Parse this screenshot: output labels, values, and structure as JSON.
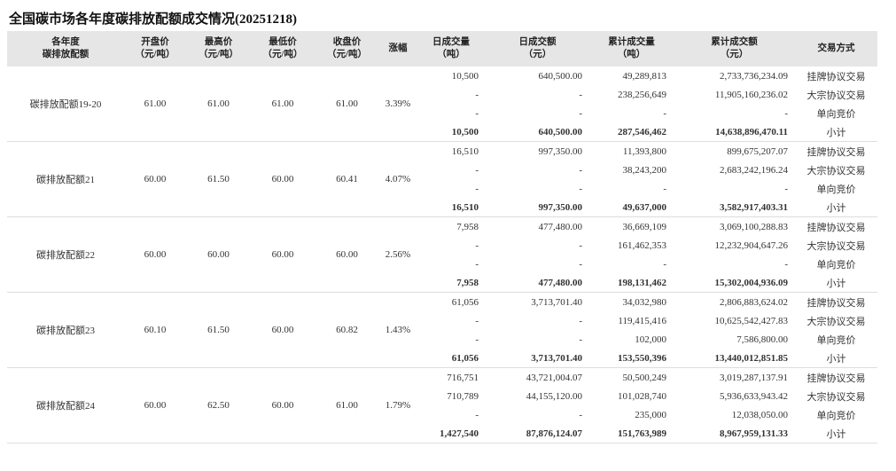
{
  "header": {
    "title": "全国碳市场各年度碳排放配额成交情况(20251218)"
  },
  "table": {
    "columns": [
      [
        "各年度",
        "碳排放配额"
      ],
      [
        "开盘价",
        "（元/吨）"
      ],
      [
        "最高价",
        "（元/吨）"
      ],
      [
        "最低价",
        "（元/吨）"
      ],
      [
        "收盘价",
        "（元/吨）"
      ],
      [
        "涨幅"
      ],
      [
        "日成交量",
        "（吨）"
      ],
      [
        "日成交额",
        "（元）"
      ],
      [
        "累计成交量",
        "（吨）"
      ],
      [
        "累计成交额",
        "（元）"
      ],
      [
        "交易方式"
      ]
    ],
    "groups": [
      {
        "name": "碳排放配额19-20",
        "open": "61.00",
        "high": "61.00",
        "low": "61.00",
        "close": "61.00",
        "change": "3.39%",
        "rows": [
          [
            "10,500",
            "640,500.00",
            "49,289,813",
            "2,733,736,234.09",
            "挂牌协议交易"
          ],
          [
            "-",
            "-",
            "238,256,649",
            "11,905,160,236.02",
            "大宗协议交易"
          ],
          [
            "-",
            "-",
            "-",
            "-",
            "单向竞价"
          ],
          [
            "10,500",
            "640,500.00",
            "287,546,462",
            "14,638,896,470.11",
            "小计"
          ]
        ]
      },
      {
        "name": "碳排放配额21",
        "open": "60.00",
        "high": "61.50",
        "low": "60.00",
        "close": "60.41",
        "change": "4.07%",
        "rows": [
          [
            "16,510",
            "997,350.00",
            "11,393,800",
            "899,675,207.07",
            "挂牌协议交易"
          ],
          [
            "-",
            "-",
            "38,243,200",
            "2,683,242,196.24",
            "大宗协议交易"
          ],
          [
            "-",
            "-",
            "-",
            "-",
            "单向竞价"
          ],
          [
            "16,510",
            "997,350.00",
            "49,637,000",
            "3,582,917,403.31",
            "小计"
          ]
        ]
      },
      {
        "name": "碳排放配额22",
        "open": "60.00",
        "high": "60.00",
        "low": "60.00",
        "close": "60.00",
        "change": "2.56%",
        "rows": [
          [
            "7,958",
            "477,480.00",
            "36,669,109",
            "3,069,100,288.83",
            "挂牌协议交易"
          ],
          [
            "-",
            "-",
            "161,462,353",
            "12,232,904,647.26",
            "大宗协议交易"
          ],
          [
            "-",
            "-",
            "-",
            "-",
            "单向竞价"
          ],
          [
            "7,958",
            "477,480.00",
            "198,131,462",
            "15,302,004,936.09",
            "小计"
          ]
        ]
      },
      {
        "name": "碳排放配额23",
        "open": "60.10",
        "high": "61.50",
        "low": "60.00",
        "close": "60.82",
        "change": "1.43%",
        "rows": [
          [
            "61,056",
            "3,713,701.40",
            "34,032,980",
            "2,806,883,624.02",
            "挂牌协议交易"
          ],
          [
            "-",
            "-",
            "119,415,416",
            "10,625,542,427.83",
            "大宗协议交易"
          ],
          [
            "-",
            "-",
            "102,000",
            "7,586,800.00",
            "单向竞价"
          ],
          [
            "61,056",
            "3,713,701.40",
            "153,550,396",
            "13,440,012,851.85",
            "小计"
          ]
        ]
      },
      {
        "name": "碳排放配额24",
        "open": "60.00",
        "high": "62.50",
        "low": "60.00",
        "close": "61.00",
        "change": "1.79%",
        "rows": [
          [
            "716,751",
            "43,721,004.07",
            "50,500,249",
            "3,019,287,137.91",
            "挂牌协议交易"
          ],
          [
            "710,789",
            "44,155,120.00",
            "101,028,740",
            "5,936,633,943.42",
            "大宗协议交易"
          ],
          [
            "-",
            "-",
            "235,000",
            "12,038,050.00",
            "单向竞价"
          ],
          [
            "1,427,540",
            "87,876,124.07",
            "151,763,989",
            "8,967,959,131.33",
            "小计"
          ]
        ]
      }
    ]
  }
}
